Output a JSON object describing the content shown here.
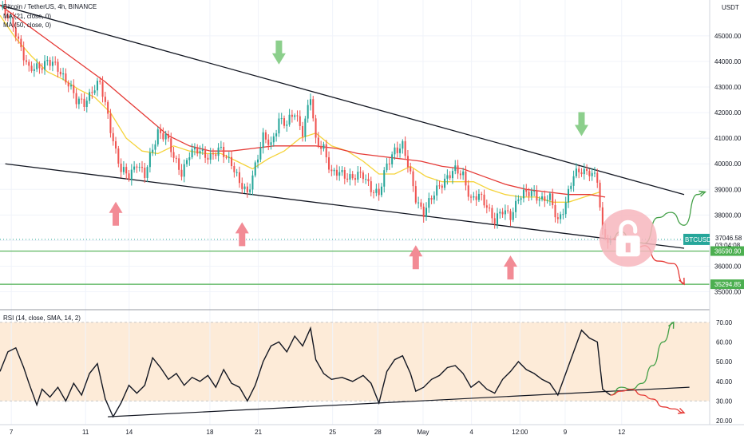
{
  "header": {
    "title": "Bitcoin / TetherUS, 4h, BINANCE",
    "ma21": "MA (21, close, 0)",
    "ma50": "MA (50, close, 0)",
    "rsi": "RSI (14, close, SMA, 14, 2)",
    "currency": "USDT"
  },
  "colors": {
    "up": "#26a69a",
    "down": "#ef5350",
    "ma21": "#f5d33a",
    "ma50": "#e53935",
    "support_line": "#4caf50",
    "arrow_green": "#8ccf8c",
    "arrow_red": "#f28b95",
    "rsi_band": "#fdebd8"
  },
  "price_tags": {
    "symbol": "BTCUSDT",
    "last": "37046.58",
    "countdown": "03:04:08",
    "level1": "36590.90",
    "level2": "35294.85"
  },
  "chart_data": [
    {
      "type": "candlestick",
      "title": "Bitcoin / TetherUS, 4h, BINANCE",
      "yunit": "USDT",
      "ylim": [
        34300,
        46400
      ],
      "yticks": [
        35000,
        36000,
        37000,
        38000,
        39000,
        40000,
        41000,
        42000,
        43000,
        44000,
        45000
      ],
      "ytick_labels": [
        "35000.00",
        "36000.00",
        "37000.00",
        "38000.00",
        "39000.00",
        "40000.00",
        "41000.00",
        "42000.00",
        "43000.00",
        "44000.00",
        "45000.00"
      ],
      "xticks": [
        "7",
        "11",
        "14",
        "18",
        "21",
        "25",
        "28",
        "May",
        "4",
        "12:00",
        "9",
        "12"
      ],
      "close_path": [
        [
          0,
          46100
        ],
        [
          3,
          45700
        ],
        [
          6,
          45200
        ],
        [
          9,
          44200
        ],
        [
          11,
          43600
        ],
        [
          14,
          43800
        ],
        [
          18,
          44000
        ],
        [
          22,
          43700
        ],
        [
          26,
          43200
        ],
        [
          29,
          42400
        ],
        [
          32,
          42400
        ],
        [
          35,
          42900
        ],
        [
          38,
          43100
        ],
        [
          41,
          41900
        ],
        [
          44,
          40500
        ],
        [
          46,
          39700
        ],
        [
          49,
          39500
        ],
        [
          52,
          40100
        ],
        [
          55,
          39500
        ],
        [
          57,
          40200
        ],
        [
          60,
          41300
        ],
        [
          63,
          41100
        ],
        [
          66,
          40200
        ],
        [
          69,
          39700
        ],
        [
          72,
          40400
        ],
        [
          76,
          40500
        ],
        [
          80,
          40300
        ],
        [
          84,
          40500
        ],
        [
          88,
          40100
        ],
        [
          91,
          39200
        ],
        [
          94,
          38800
        ],
        [
          97,
          40000
        ],
        [
          100,
          41000
        ],
        [
          103,
          40700
        ],
        [
          106,
          41800
        ],
        [
          109,
          41500
        ],
        [
          112,
          42000
        ],
        [
          115,
          41300
        ],
        [
          118,
          42600
        ],
        [
          120,
          40800
        ],
        [
          123,
          40700
        ],
        [
          126,
          39600
        ],
        [
          130,
          39600
        ],
        [
          134,
          39500
        ],
        [
          138,
          39500
        ],
        [
          141,
          39100
        ],
        [
          144,
          38800
        ],
        [
          147,
          39900
        ],
        [
          150,
          40600
        ],
        [
          153,
          40700
        ],
        [
          156,
          39500
        ],
        [
          158,
          38700
        ],
        [
          161,
          38100
        ],
        [
          164,
          38600
        ],
        [
          167,
          39200
        ],
        [
          170,
          39500
        ],
        [
          173,
          39700
        ],
        [
          176,
          39600
        ],
        [
          179,
          38600
        ],
        [
          182,
          38700
        ],
        [
          185,
          38400
        ],
        [
          188,
          37800
        ],
        [
          191,
          38100
        ],
        [
          194,
          38000
        ],
        [
          197,
          38700
        ],
        [
          200,
          38800
        ],
        [
          203,
          38900
        ],
        [
          206,
          38600
        ],
        [
          209,
          38600
        ],
        [
          212,
          37800
        ],
        [
          215,
          38500
        ],
        [
          218,
          39500
        ],
        [
          221,
          39800
        ],
        [
          224,
          39700
        ],
        [
          227,
          39300
        ],
        [
          229,
          37300
        ],
        [
          232,
          37046
        ]
      ],
      "series": [
        {
          "name": "MA (21, close, 0)",
          "points": [
            [
              0,
              45800
            ],
            [
              6,
              44900
            ],
            [
              12,
              44200
            ],
            [
              18,
              43600
            ],
            [
              24,
              43300
            ],
            [
              30,
              42900
            ],
            [
              36,
              42600
            ],
            [
              42,
              42000
            ],
            [
              48,
              41000
            ],
            [
              54,
              40500
            ],
            [
              60,
              40400
            ],
            [
              66,
              40700
            ],
            [
              72,
              40500
            ],
            [
              78,
              40400
            ],
            [
              84,
              40400
            ],
            [
              90,
              40100
            ],
            [
              96,
              39800
            ],
            [
              102,
              40200
            ],
            [
              108,
              40500
            ],
            [
              114,
              41000
            ],
            [
              120,
              41200
            ],
            [
              126,
              40700
            ],
            [
              132,
              40500
            ],
            [
              138,
              40100
            ],
            [
              144,
              39600
            ],
            [
              150,
              39600
            ],
            [
              156,
              39900
            ],
            [
              162,
              39500
            ],
            [
              168,
              39300
            ],
            [
              174,
              39300
            ],
            [
              180,
              39300
            ],
            [
              186,
              39000
            ],
            [
              192,
              38800
            ],
            [
              198,
              38700
            ],
            [
              204,
              38700
            ],
            [
              210,
              38500
            ],
            [
              216,
              38500
            ],
            [
              222,
              38700
            ],
            [
              228,
              38900
            ]
          ]
        },
        {
          "name": "MA (50, close, 0)",
          "points": [
            [
              0,
              46200
            ],
            [
              8,
              45600
            ],
            [
              16,
              45000
            ],
            [
              24,
              44400
            ],
            [
              32,
              43800
            ],
            [
              40,
              43200
            ],
            [
              48,
              42500
            ],
            [
              56,
              41800
            ],
            [
              64,
              41100
            ],
            [
              72,
              40700
            ],
            [
              80,
              40500
            ],
            [
              88,
              40500
            ],
            [
              96,
              40600
            ],
            [
              104,
              40700
            ],
            [
              112,
              40700
            ],
            [
              120,
              40700
            ],
            [
              128,
              40600
            ],
            [
              136,
              40400
            ],
            [
              144,
              40300
            ],
            [
              152,
              40200
            ],
            [
              160,
              40100
            ],
            [
              168,
              39900
            ],
            [
              176,
              39800
            ],
            [
              184,
              39500
            ],
            [
              192,
              39200
            ],
            [
              200,
              39000
            ],
            [
              208,
              38900
            ],
            [
              216,
              38800
            ],
            [
              224,
              38800
            ],
            [
              230,
              38700
            ]
          ]
        }
      ],
      "horizontal_levels": [
        36590.9,
        35294.85
      ],
      "trendlines": [
        {
          "from": [
            0,
            46200
          ],
          "to": [
            260,
            38800
          ]
        },
        {
          "from": [
            2,
            40000
          ],
          "to": [
            260,
            36700
          ]
        }
      ],
      "projections": [
        {
          "color": "green",
          "points": [
            [
              232,
              37046
            ],
            [
              236,
              37350
            ],
            [
              240,
              37000
            ],
            [
              245,
              36900
            ],
            [
              250,
              37900
            ],
            [
              255,
              38100
            ],
            [
              260,
              37600
            ],
            [
              265,
              38800
            ],
            [
              268,
              38900
            ]
          ]
        },
        {
          "color": "red",
          "points": [
            [
              232,
              37046
            ],
            [
              236,
              37150
            ],
            [
              240,
              36500
            ],
            [
              245,
              36800
            ],
            [
              250,
              36200
            ],
            [
              256,
              36100
            ],
            [
              260,
              35300
            ]
          ]
        }
      ],
      "markers": [
        {
          "type": "arrow-down",
          "color": "green",
          "at": [
            106,
            44100
          ]
        },
        {
          "type": "arrow-down",
          "color": "green",
          "at": [
            221,
            41300
          ]
        },
        {
          "type": "arrow-up",
          "color": "red",
          "at": [
            44,
            38300
          ]
        },
        {
          "type": "arrow-up",
          "color": "red",
          "at": [
            92,
            37500
          ]
        },
        {
          "type": "arrow-up",
          "color": "red",
          "at": [
            158,
            36600
          ]
        },
        {
          "type": "arrow-up",
          "color": "red",
          "at": [
            194,
            36200
          ]
        },
        {
          "type": "lock",
          "color": "red",
          "at": [
            232,
            37100
          ]
        }
      ]
    },
    {
      "type": "line",
      "title": "RSI (14, close, SMA, 14, 2)",
      "ylim": [
        18,
        76
      ],
      "yticks": [
        20,
        30,
        40,
        50,
        60,
        70
      ],
      "ytick_labels": [
        "20.00",
        "30.00",
        "40.00",
        "50.00",
        "60.00",
        "70.00"
      ],
      "band": [
        30,
        70
      ],
      "series": [
        {
          "name": "RSI (14, close, SMA, 14, 2)",
          "points": [
            [
              0,
              45
            ],
            [
              3,
              55
            ],
            [
              6,
              57
            ],
            [
              9,
              47
            ],
            [
              11,
              39
            ],
            [
              14,
              28
            ],
            [
              16,
              36
            ],
            [
              19,
              32
            ],
            [
              22,
              37
            ],
            [
              25,
              30
            ],
            [
              28,
              39
            ],
            [
              31,
              33
            ],
            [
              34,
              44
            ],
            [
              37,
              49
            ],
            [
              40,
              31
            ],
            [
              43,
              22
            ],
            [
              46,
              29
            ],
            [
              49,
              38
            ],
            [
              52,
              34
            ],
            [
              55,
              38
            ],
            [
              58,
              52
            ],
            [
              61,
              47
            ],
            [
              64,
              41
            ],
            [
              67,
              44
            ],
            [
              70,
              38
            ],
            [
              73,
              42
            ],
            [
              76,
              40
            ],
            [
              79,
              43
            ],
            [
              82,
              37
            ],
            [
              85,
              46
            ],
            [
              88,
              39
            ],
            [
              91,
              37
            ],
            [
              94,
              30
            ],
            [
              97,
              38
            ],
            [
              100,
              50
            ],
            [
              103,
              58
            ],
            [
              106,
              60
            ],
            [
              109,
              55
            ],
            [
              112,
              63
            ],
            [
              115,
              58
            ],
            [
              118,
              67
            ],
            [
              120,
              51
            ],
            [
              123,
              44
            ],
            [
              126,
              41
            ],
            [
              130,
              42
            ],
            [
              134,
              40
            ],
            [
              138,
              43
            ],
            [
              141,
              39
            ],
            [
              144,
              29
            ],
            [
              147,
              45
            ],
            [
              150,
              51
            ],
            [
              153,
              53
            ],
            [
              156,
              44
            ],
            [
              158,
              35
            ],
            [
              161,
              37
            ],
            [
              164,
              41
            ],
            [
              167,
              43
            ],
            [
              170,
              47
            ],
            [
              173,
              48
            ],
            [
              176,
              44
            ],
            [
              179,
              37
            ],
            [
              182,
              40
            ],
            [
              185,
              36
            ],
            [
              188,
              34
            ],
            [
              191,
              41
            ],
            [
              194,
              45
            ],
            [
              197,
              50
            ],
            [
              200,
              46
            ],
            [
              203,
              44
            ],
            [
              206,
              41
            ],
            [
              209,
              39
            ],
            [
              212,
              33
            ],
            [
              215,
              44
            ],
            [
              218,
              55
            ],
            [
              221,
              66
            ],
            [
              224,
              62
            ],
            [
              227,
              60
            ],
            [
              229,
              36
            ],
            [
              232,
              33
            ]
          ]
        }
      ],
      "trendlines": [
        {
          "from": [
            41,
            22
          ],
          "to": [
            262,
            37
          ]
        }
      ],
      "projections": [
        {
          "color": "green",
          "points": [
            [
              232,
              33
            ],
            [
              236,
              37
            ],
            [
              240,
              36
            ],
            [
              244,
              39
            ],
            [
              248,
              48
            ],
            [
              252,
              60
            ],
            [
              256,
              70
            ]
          ]
        },
        {
          "color": "red",
          "points": [
            [
              232,
              33
            ],
            [
              236,
              35
            ],
            [
              240,
              36
            ],
            [
              244,
              33
            ],
            [
              248,
              31
            ],
            [
              252,
              27
            ],
            [
              256,
              26
            ],
            [
              260,
              24
            ]
          ]
        }
      ]
    }
  ]
}
